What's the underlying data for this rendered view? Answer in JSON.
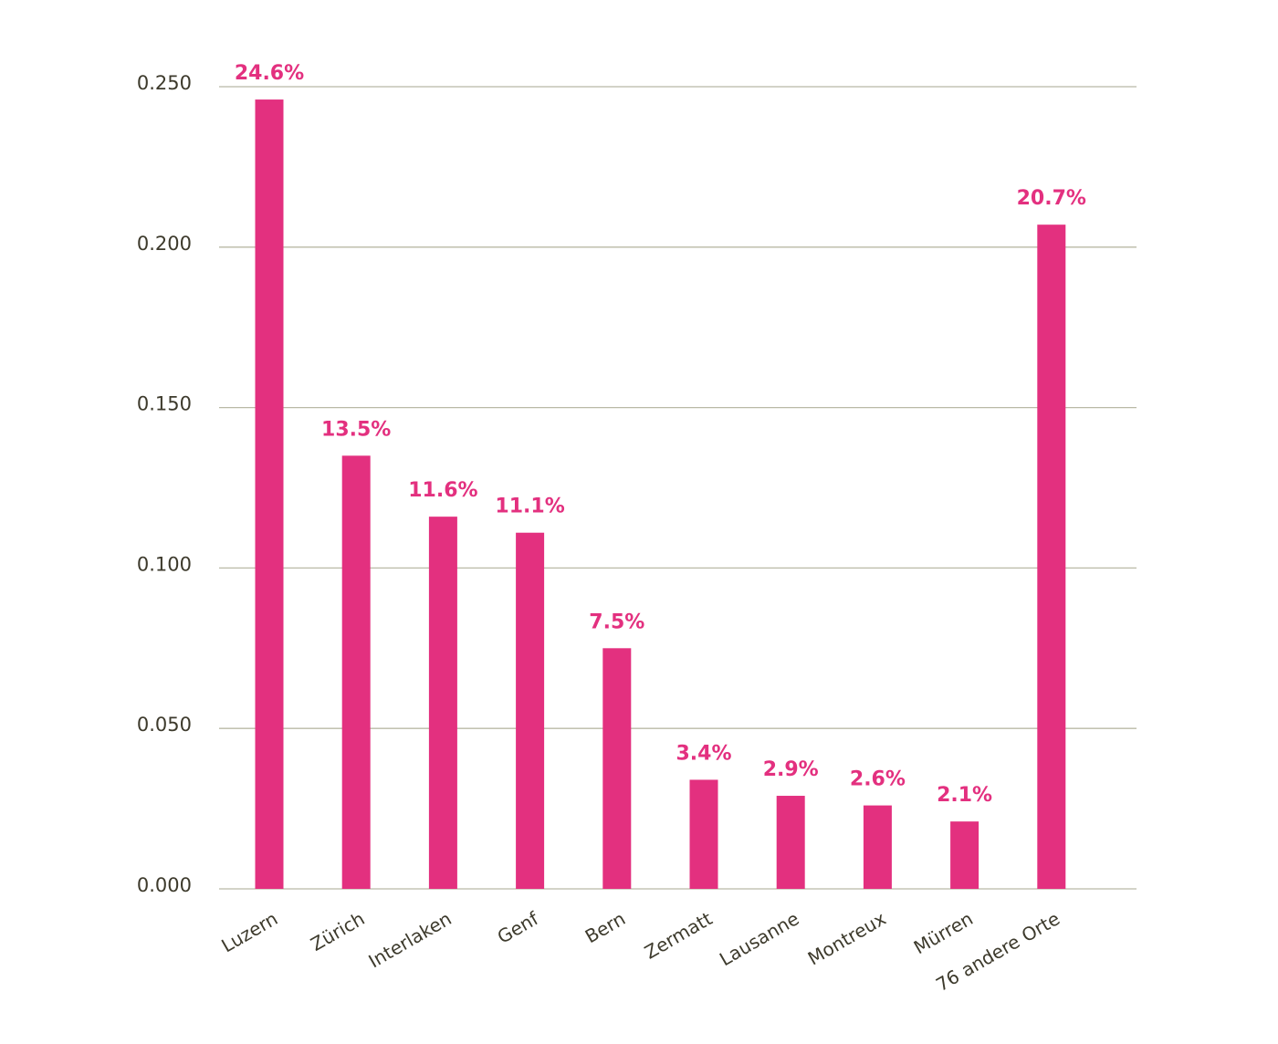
{
  "chart_data": {
    "type": "bar",
    "categories": [
      "Luzern",
      "Zürich",
      "Interlaken",
      "Genf",
      "Bern",
      "Zermatt",
      "Lausanne",
      "Montreux",
      "Mürren",
      "76 andere Orte"
    ],
    "values": [
      0.246,
      0.135,
      0.116,
      0.111,
      0.075,
      0.034,
      0.029,
      0.026,
      0.021,
      0.207
    ],
    "value_labels": [
      "24.6%",
      "13.5%",
      "11.6%",
      "11.1%",
      "7.5%",
      "3.4%",
      "2.9%",
      "2.6%",
      "2.1%",
      "20.7%"
    ],
    "color": "#e3307f",
    "ylim": [
      0,
      0.25
    ],
    "yticks": [
      {
        "value": 0,
        "label": "0.000"
      },
      {
        "value": 0.05,
        "label": "0.050"
      },
      {
        "value": 0.1,
        "label": "0.100"
      },
      {
        "value": 0.15,
        "label": "0.150"
      },
      {
        "value": 0.2,
        "label": "0.200"
      },
      {
        "value": 0.25,
        "label": "0.250"
      }
    ],
    "grid": true
  }
}
